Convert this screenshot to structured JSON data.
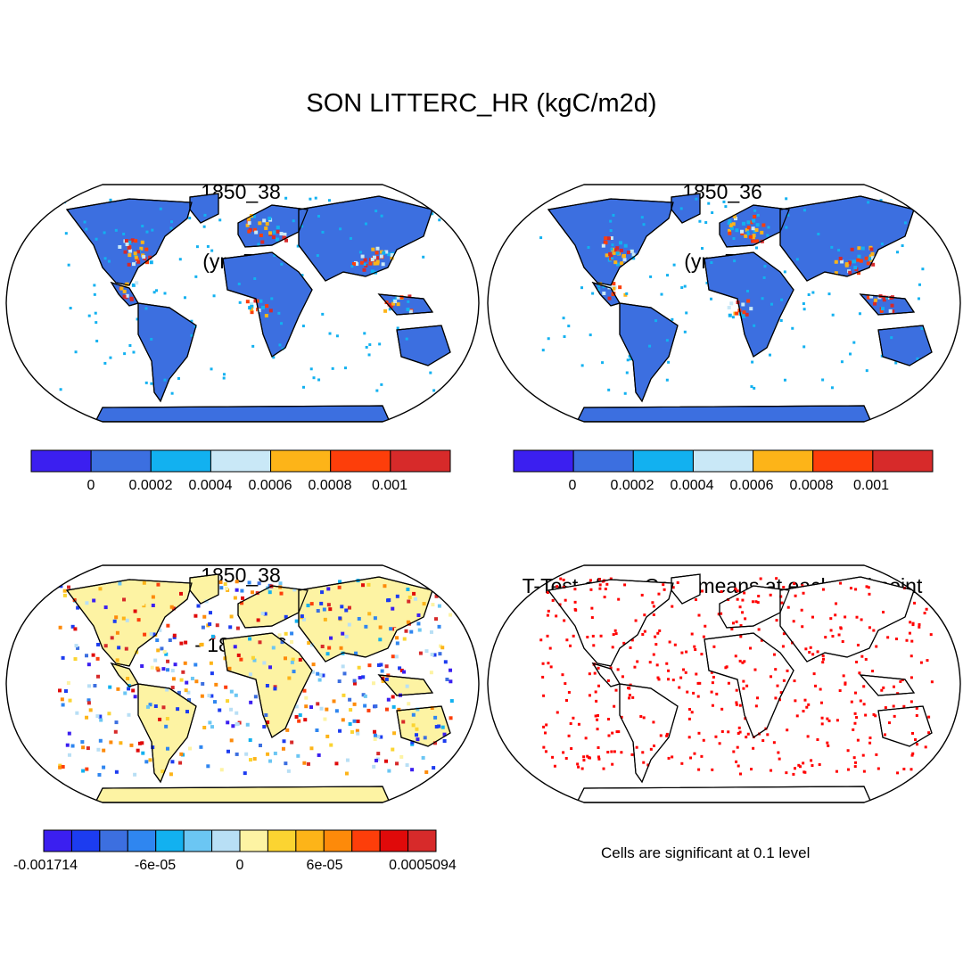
{
  "main_title": "SON LITTERC_HR (kgC/m2d)",
  "panels": [
    {
      "id": "case1",
      "title_line1": "1850_38",
      "title_line2": "(yrs 5-9)"
    },
    {
      "id": "case2",
      "title_line1": "1850_36",
      "title_line2": "(yrs 5-9)"
    },
    {
      "id": "diff",
      "title_line1": "1850_38",
      "title_line2": "- 1850_36"
    },
    {
      "id": "ttest",
      "title_line1": "T-Test of two Case means at each grid point",
      "title_line2": ""
    }
  ],
  "colorbar_main": {
    "colors": [
      "#3b1ff0",
      "#3c6fe0",
      "#12b1f0",
      "#c9e8f7",
      "#fdb418",
      "#fd3e0a",
      "#d72a2a"
    ],
    "tick_labels": [
      "0",
      "0.0002",
      "0.0004",
      "0.0006",
      "0.0008",
      "0.001"
    ]
  },
  "colorbar_diff": {
    "colors": [
      "#3b1ff0",
      "#1c3cf0",
      "#3c6fe0",
      "#2f86f0",
      "#12b1f0",
      "#6bc6f3",
      "#b8dff5",
      "#fdf3a3",
      "#fbd431",
      "#fdb418",
      "#fd8a0a",
      "#fd3e0a",
      "#e00a0a",
      "#d72a2a"
    ],
    "tick_labels": [
      "-0.001714",
      "-6e-05",
      "0",
      "6e-05",
      "0.0005094"
    ]
  },
  "significance_note": "Cells are significant at 0.1 level",
  "colors": {
    "ocean": "#ffffff",
    "land_base_case": "#3c6fe0",
    "land_base_diff": "#fdf3a3",
    "signif_dot": "#ff0000",
    "coast": "#000000"
  }
}
